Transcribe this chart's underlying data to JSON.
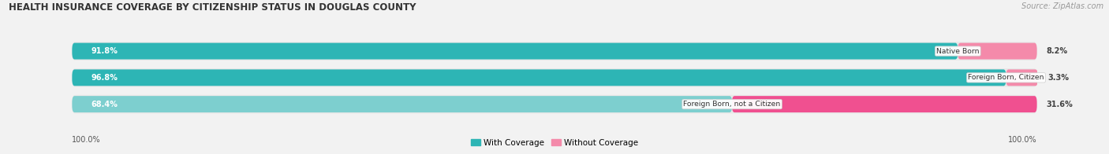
{
  "title": "HEALTH INSURANCE COVERAGE BY CITIZENSHIP STATUS IN DOUGLAS COUNTY",
  "source": "Source: ZipAtlas.com",
  "categories": [
    "Native Born",
    "Foreign Born, Citizen",
    "Foreign Born, not a Citizen"
  ],
  "with_coverage": [
    91.8,
    96.8,
    68.4
  ],
  "without_coverage": [
    8.2,
    3.3,
    31.6
  ],
  "color_with": [
    "#2db5b5",
    "#2db5b5",
    "#7dcfcf"
  ],
  "color_without": [
    "#f48aaa",
    "#f48aaa",
    "#f05090"
  ],
  "color_bg_bar": "#e8e8e8",
  "color_fig_bg": "#f2f2f2",
  "title_fontsize": 8.5,
  "label_fontsize": 7.0,
  "legend_fontsize": 7.5,
  "source_fontsize": 7.0,
  "figsize": [
    14.06,
    1.96
  ]
}
